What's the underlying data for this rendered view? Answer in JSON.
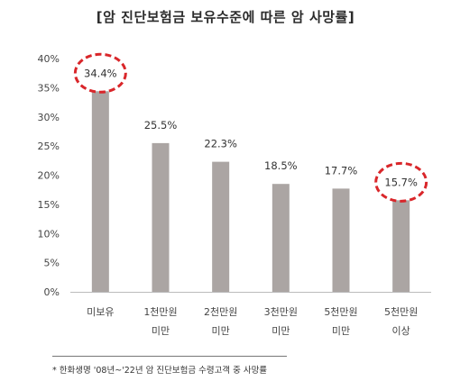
{
  "chart_data": {
    "type": "bar",
    "title": "[암 진단보험금 보유수준에 따른 암 사망률]",
    "categories": [
      [
        "미보유"
      ],
      [
        "1천만원",
        "미만"
      ],
      [
        "2천만원",
        "미만"
      ],
      [
        "3천만원",
        "미만"
      ],
      [
        "5천만원",
        "미만"
      ],
      [
        "5천만원",
        "이상"
      ]
    ],
    "values": [
      34.4,
      25.5,
      22.3,
      18.5,
      17.7,
      15.7
    ],
    "value_labels": [
      "34.4%",
      "25.5%",
      "22.3%",
      "18.5%",
      "17.7%",
      "15.7%"
    ],
    "ylim": [
      0,
      40
    ],
    "yticks": [
      0,
      5,
      10,
      15,
      20,
      25,
      30,
      35,
      40
    ],
    "ytick_labels": [
      "0%",
      "5%",
      "10%",
      "15%",
      "20%",
      "25%",
      "30%",
      "35%",
      "40%"
    ],
    "highlighted": [
      0,
      5
    ],
    "grid": false,
    "colors": {
      "bar": "#aba5a3",
      "highlight": "#d9262a",
      "axis": "#bbbbbb"
    }
  },
  "footnote": "* 한화생명 '08년~'22년 암 진단보험금 수령고객 중 사망률"
}
